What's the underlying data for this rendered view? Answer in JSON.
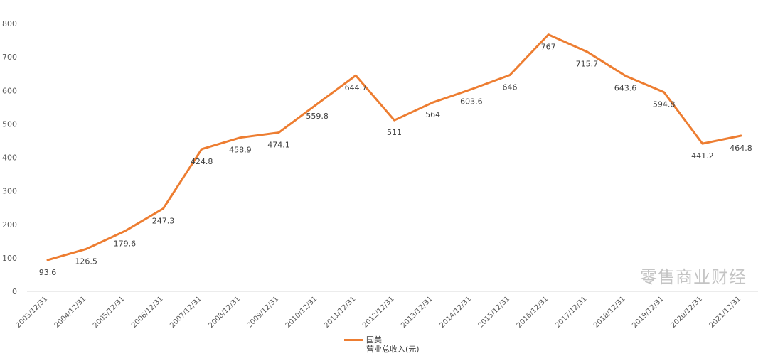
{
  "chart_data": {
    "type": "line",
    "categories": [
      "2003/12/31",
      "2004/12/31",
      "2005/12/31",
      "2006/12/31",
      "2007/12/31",
      "2008/12/31",
      "2009/12/31",
      "2010/12/31",
      "2011/12/31",
      "2012/12/31",
      "2013/12/31",
      "2014/12/31",
      "2015/12/31",
      "2016/12/31",
      "2017/12/31",
      "2018/12/31",
      "2019/12/31",
      "2020/12/31",
      "2021/12/31"
    ],
    "series": [
      {
        "name": "国美",
        "color": "#ED7D31",
        "values": [
          93.6,
          126.5,
          179.6,
          247.3,
          424.8,
          458.9,
          474.1,
          559.8,
          644.7,
          511,
          564,
          603.6,
          646,
          767,
          715.7,
          643.6,
          594.8,
          441.2,
          464.8
        ],
        "value_labels": [
          "93.6",
          "126.5",
          "179.6",
          "247.3",
          "424.8",
          "458.9",
          "474.1",
          "559.8",
          "644.7",
          "511",
          "564",
          "603.6",
          "646",
          "767",
          "715.7",
          "643.6",
          "594.8",
          "441.2",
          "464.8"
        ]
      }
    ],
    "legend_sublabel": "营业总收入(元)",
    "ylim": [
      0,
      800
    ],
    "yticks": [
      "0",
      "100",
      "200",
      "300",
      "400",
      "500",
      "600",
      "700",
      "800"
    ],
    "grid": false,
    "legend_position": "bottom"
  },
  "watermark": "零售商业财经"
}
